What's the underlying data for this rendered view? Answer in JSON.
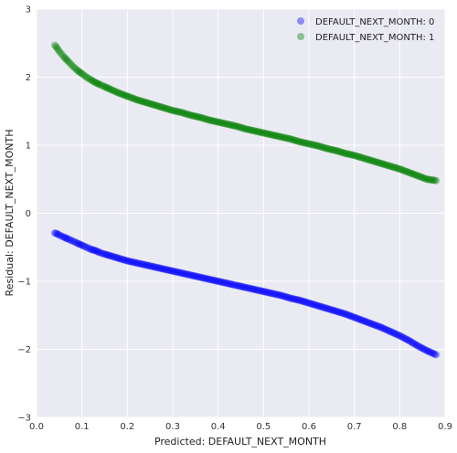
{
  "chart_data": {
    "type": "scatter",
    "title": "",
    "xlabel": "Predicted: DEFAULT_NEXT_MONTH",
    "ylabel": "Residual: DEFAULT_NEXT_MONTH",
    "xlim": [
      0.0,
      0.9
    ],
    "ylim": [
      -3,
      3
    ],
    "xticks": [
      "0.0",
      "0.1",
      "0.2",
      "0.3",
      "0.4",
      "0.5",
      "0.6",
      "0.7",
      "0.8",
      "0.9"
    ],
    "yticks": [
      "3",
      "2",
      "1",
      "0",
      "−1",
      "−2",
      "−3"
    ],
    "grid": true,
    "legend_position": "top-right",
    "series": [
      {
        "name": "DEFAULT_NEXT_MONTH: 0",
        "color": "#0000ff",
        "x": [
          0.04,
          0.045,
          0.05,
          0.06,
          0.07,
          0.08,
          0.09,
          0.1,
          0.11,
          0.12,
          0.13,
          0.14,
          0.15,
          0.16,
          0.18,
          0.2,
          0.22,
          0.24,
          0.26,
          0.28,
          0.3,
          0.32,
          0.34,
          0.36,
          0.38,
          0.4,
          0.42,
          0.44,
          0.46,
          0.48,
          0.5,
          0.52,
          0.54,
          0.56,
          0.58,
          0.6,
          0.62,
          0.64,
          0.66,
          0.68,
          0.7,
          0.72,
          0.74,
          0.76,
          0.78,
          0.8,
          0.82,
          0.84,
          0.86,
          0.88
        ],
        "y": [
          -0.29,
          -0.3,
          -0.32,
          -0.35,
          -0.38,
          -0.41,
          -0.44,
          -0.47,
          -0.5,
          -0.53,
          -0.55,
          -0.58,
          -0.6,
          -0.62,
          -0.66,
          -0.7,
          -0.73,
          -0.76,
          -0.79,
          -0.82,
          -0.85,
          -0.88,
          -0.91,
          -0.94,
          -0.97,
          -1.0,
          -1.03,
          -1.06,
          -1.09,
          -1.12,
          -1.15,
          -1.18,
          -1.21,
          -1.25,
          -1.28,
          -1.32,
          -1.36,
          -1.4,
          -1.44,
          -1.48,
          -1.53,
          -1.58,
          -1.63,
          -1.68,
          -1.74,
          -1.8,
          -1.87,
          -1.95,
          -2.02,
          -2.08
        ]
      },
      {
        "name": "DEFAULT_NEXT_MONTH: 1",
        "color": "#008000",
        "x": [
          0.04,
          0.045,
          0.05,
          0.06,
          0.07,
          0.08,
          0.09,
          0.1,
          0.11,
          0.12,
          0.13,
          0.14,
          0.15,
          0.16,
          0.18,
          0.2,
          0.22,
          0.24,
          0.26,
          0.28,
          0.3,
          0.32,
          0.34,
          0.36,
          0.38,
          0.4,
          0.42,
          0.44,
          0.46,
          0.48,
          0.5,
          0.52,
          0.54,
          0.56,
          0.58,
          0.6,
          0.62,
          0.64,
          0.66,
          0.68,
          0.7,
          0.72,
          0.74,
          0.76,
          0.78,
          0.8,
          0.82,
          0.84,
          0.86,
          0.88
        ],
        "y": [
          2.47,
          2.43,
          2.38,
          2.3,
          2.23,
          2.16,
          2.1,
          2.05,
          2.0,
          1.96,
          1.92,
          1.89,
          1.86,
          1.83,
          1.77,
          1.72,
          1.67,
          1.63,
          1.59,
          1.55,
          1.51,
          1.48,
          1.44,
          1.41,
          1.37,
          1.34,
          1.31,
          1.28,
          1.24,
          1.21,
          1.18,
          1.15,
          1.12,
          1.09,
          1.05,
          1.02,
          0.99,
          0.95,
          0.92,
          0.88,
          0.85,
          0.81,
          0.77,
          0.73,
          0.69,
          0.65,
          0.6,
          0.55,
          0.5,
          0.48
        ]
      }
    ]
  }
}
